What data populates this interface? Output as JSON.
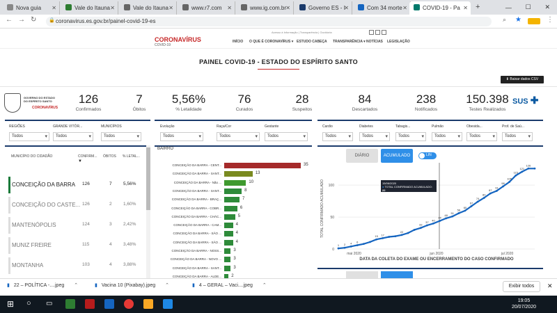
{
  "tabs": [
    {
      "label": "Nova guia",
      "color": "#888"
    },
    {
      "label": "Vale do Itauna",
      "color": "#2e7d32"
    },
    {
      "label": "Vale do Itauna",
      "color": "#666"
    },
    {
      "label": "www.r7.com",
      "color": "#666"
    },
    {
      "label": "www.ig.com.br",
      "color": "#666"
    },
    {
      "label": "Governo ES - I",
      "color": "#1a3a6b"
    },
    {
      "label": "Com 34 morte",
      "color": "#1565c0"
    },
    {
      "label": "COVID-19 - Pa",
      "color": "#00796b"
    }
  ],
  "address": {
    "url": "coronavirus.es.gov.br/painel-covid-19-es"
  },
  "site": {
    "logo": "CORONAVÍRUS",
    "logo_sub": "COVID-19",
    "gov_strip": "Acesso à Informação | Transparência | Ouvidoria",
    "menu": [
      "INÍCIO",
      "O QUE É CORONAVÍRUS ▾",
      "ESTUDO CABEÇA",
      "TRANSPARÊNCIA ▾",
      "NOTÍCIAS",
      "LEGISLAÇÃO"
    ]
  },
  "page": {
    "title": "PAINEL COVID-19 - ESTADO DO ESPÍRITO SANTO",
    "csv": "⬇ Baixar dados CSV"
  },
  "gov": {
    "line1": "GOVERNO DO ESTADO",
    "line2": "DO ESPÍRITO SANTO",
    "covid": "CORONAVÍRUS"
  },
  "kpis": [
    {
      "value": "126",
      "label": "Confirmados"
    },
    {
      "value": "7",
      "label": "Óbitos"
    },
    {
      "value": "5,56%",
      "label": "% Letalidade"
    },
    {
      "value": "76",
      "label": "Curados"
    },
    {
      "value": "28",
      "label": "Suspeitos"
    },
    {
      "value": "84",
      "label": "Descartados"
    },
    {
      "value": "238",
      "label": "Notificados"
    },
    {
      "value": "150.398",
      "label": "Testes Realizados"
    }
  ],
  "sus": "SUS",
  "filters1": [
    {
      "label": "REGIÕES",
      "value": "Todos"
    },
    {
      "label": "GRANDE VITÓR...",
      "value": "Todos"
    },
    {
      "label": "MUNICÍPIOS",
      "value": "Todos"
    }
  ],
  "filters2": [
    {
      "label": "Evolução",
      "value": "Todos"
    },
    {
      "label": "Raça/Cor",
      "value": "Todos"
    },
    {
      "label": "Gestante",
      "value": "Todos"
    }
  ],
  "filters3": [
    {
      "label": "Cardio",
      "value": "Todos"
    },
    {
      "label": "Diabetes",
      "value": "Todos"
    },
    {
      "label": "Tabagis...",
      "value": "Todos"
    },
    {
      "label": "Pulmão",
      "value": "Todos"
    },
    {
      "label": "Obesida...",
      "value": "Todos"
    },
    {
      "label": "Prof. de Saú...",
      "value": "Todos"
    }
  ],
  "citytable": {
    "headers": [
      "MUNICÍPIO DO CIDADÃO",
      "CONFIRM...",
      "ÓBITOS",
      "% LETAL..."
    ],
    "rows": [
      {
        "name": "CONCEIÇÃO DA BARRA",
        "conf": "126",
        "obitos": "7",
        "letal": "5,56%"
      },
      {
        "name": "CONCEIÇÃO DO CASTE...",
        "conf": "126",
        "obitos": "2",
        "letal": "1,60%"
      },
      {
        "name": "MANTENÓPOLIS",
        "conf": "124",
        "obitos": "3",
        "letal": "2,42%"
      },
      {
        "name": "MUNIZ FREIRE",
        "conf": "115",
        "obitos": "4",
        "letal": "3,48%"
      },
      {
        "name": "MONTANHA",
        "conf": "103",
        "obitos": "4",
        "letal": "3,88%"
      }
    ]
  },
  "bairro": {
    "label": "BAIRRO",
    "rows": [
      {
        "name": "CONCEIÇÃO DA BARRA - CENT...",
        "value": 35,
        "color": "#a52a2a"
      },
      {
        "name": "CONCEIÇÃO DA BARRA - SANT...",
        "value": 13,
        "color": "#7a8a20"
      },
      {
        "name": "CONCEIÇÃO DA BARRA - Não ...",
        "value": 10,
        "color": "#3f9a2f"
      },
      {
        "name": "CONCEIÇÃO DA BARRA - SANT...",
        "value": 8,
        "color": "#2e8b3a"
      },
      {
        "name": "CONCEIÇÃO DA BARRA - BRAÇ...",
        "value": 7,
        "color": "#2e8b3a"
      },
      {
        "name": "CONCEIÇÃO DA BARRA - COBR...",
        "value": 6,
        "color": "#2e8b3a"
      },
      {
        "name": "CONCEIÇÃO DA BARRA - CHÁC...",
        "value": 5,
        "color": "#2e8b3a"
      },
      {
        "name": "CONCEIÇÃO DA BARRA - CAM...",
        "value": 4,
        "color": "#2e8b3a"
      },
      {
        "name": "CONCEIÇÃO DA BARRA - SÃO ...",
        "value": 4,
        "color": "#2e8b3a"
      },
      {
        "name": "CONCEIÇÃO DA BARRA - SÃO ...",
        "value": 4,
        "color": "#2e8b3a"
      },
      {
        "name": "CONCEIÇÃO DA BARRA - NOSS...",
        "value": 3,
        "color": "#2e8b3a"
      },
      {
        "name": "CONCEIÇÃO DA BARRA - NOVO ...",
        "value": 3,
        "color": "#2e8b3a"
      },
      {
        "name": "CONCEIÇÃO DA BARRA - SANT...",
        "value": 3,
        "color": "#2e8b3a"
      },
      {
        "name": "CONCEIÇÃO DA BARRA - ALDE...",
        "value": 2,
        "color": "#2e8b3a"
      },
      {
        "name": "CONCEIÇÃO DA BARRA - ANTÔ...",
        "value": 2,
        "color": "#2e8b3a"
      }
    ]
  },
  "toggles": {
    "diario": "DIÁRIO",
    "acumulado": "ACUMULADO",
    "lin": "LIN"
  },
  "tooltip": {
    "date": "15/06/2020",
    "text": "TOTAL CONFIRMADO ACUMULADO:",
    "value": "22"
  },
  "chart_data": {
    "type": "line",
    "xlabel": "DATA DA COLETA DO EXAME OU ENCERRAMENTO DO CASO CONFIRMADO",
    "ylabel": "TOTAL CONFIRMADO ACUMULADO",
    "yticks": [
      0,
      50,
      100
    ],
    "xticks": [
      "mai 2020",
      "jun 2020",
      "jul 2020"
    ],
    "ylim": [
      0,
      135
    ],
    "series": [
      {
        "values": [
          1,
          2,
          4,
          6,
          8,
          11,
          15,
          17,
          19,
          20,
          22,
          25,
          30,
          33,
          37,
          40,
          44,
          48,
          51,
          56,
          60,
          67,
          74,
          80,
          87,
          91,
          98,
          105,
          115,
          121,
          126,
          126
        ]
      }
    ],
    "point_labels": [
      "1",
      "2",
      "4",
      "6",
      "15",
      "17",
      "22",
      "33",
      "37",
      "40",
      "44",
      "48",
      "51",
      "56",
      "60",
      "67",
      "74",
      "80",
      "87",
      "91",
      "98",
      "105",
      "115",
      "121",
      "126"
    ],
    "series_color": "#1565c0"
  },
  "downloads": [
    {
      "name": "22 – POLÍTICA -....jpeg"
    },
    {
      "name": "Vacina 10 (Pixabay).jpeg"
    },
    {
      "name": "4 – GERAL – Vaci....jpeg"
    }
  ],
  "dl_showall": "Exibir todos",
  "clock": {
    "time": "19:05",
    "date": "20/07/2020"
  }
}
